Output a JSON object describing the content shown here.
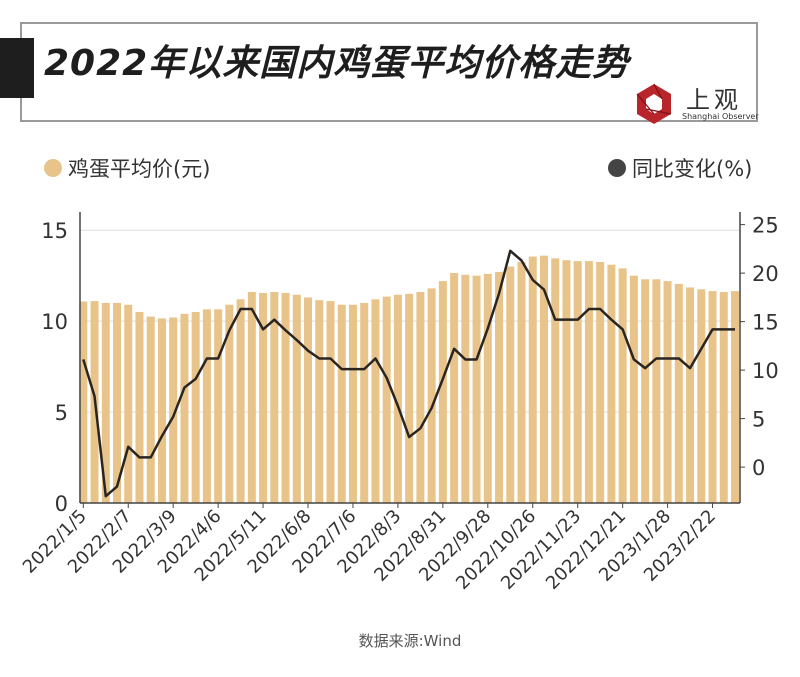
{
  "title": "2022年以来国内鸡蛋平均价格走势",
  "logo": {
    "cn": "上观",
    "en": "Shanghai Observer",
    "color": "#b8252b"
  },
  "source": "数据来源:Wind",
  "chart_data": {
    "type": "bar+line",
    "legend": {
      "placement": "top"
    },
    "grid": true,
    "x_tick_labels": [
      "2022/1/5",
      "2022/2/7",
      "2022/3/9",
      "2022/4/6",
      "2022/5/11",
      "2022/6/8",
      "2022/7/6",
      "2022/8/3",
      "2022/8/31",
      "2022/9/28",
      "2022/10/26",
      "2022/11/23",
      "2022/12/21",
      "2023/1/28",
      "2023/2/22"
    ],
    "left_axis": {
      "ylim": [
        0,
        16
      ],
      "ticks": [
        0,
        5,
        10,
        15
      ]
    },
    "right_axis": {
      "ylim": [
        -3.7,
        26.3
      ],
      "ticks": [
        0,
        5,
        10,
        15,
        20,
        25
      ]
    },
    "series": [
      {
        "name": "鸡蛋平均价(元)",
        "type": "bar",
        "axis": "left",
        "color": "#e8c48a",
        "values": [
          11.08,
          11.1,
          11.0,
          11.0,
          10.9,
          10.5,
          10.25,
          10.15,
          10.2,
          10.4,
          10.5,
          10.65,
          10.65,
          10.9,
          11.2,
          11.6,
          11.55,
          11.6,
          11.55,
          11.45,
          11.3,
          11.15,
          11.1,
          10.9,
          10.9,
          11.0,
          11.2,
          11.35,
          11.45,
          11.5,
          11.6,
          11.8,
          12.2,
          12.65,
          12.55,
          12.5,
          12.6,
          12.7,
          13.0,
          13.25,
          13.55,
          13.6,
          13.45,
          13.35,
          13.3,
          13.3,
          13.25,
          13.1,
          12.9,
          12.5,
          12.3,
          12.3,
          12.2,
          12.05,
          11.85,
          11.75,
          11.65,
          11.6,
          11.65
        ]
      },
      {
        "name": "同比变化(%)",
        "type": "line",
        "axis": "right",
        "color": "#2a2520",
        "values": [
          11.1,
          7.3,
          -3.0,
          -2.0,
          2.1,
          1.0,
          1.0,
          3.2,
          5.2,
          8.2,
          9.1,
          11.2,
          11.2,
          14.1,
          16.3,
          16.3,
          14.2,
          15.2,
          14.1,
          13.1,
          12.0,
          11.2,
          11.2,
          10.1,
          10.1,
          10.1,
          11.2,
          9.2,
          6.3,
          3.1,
          4.0,
          6.1,
          9.1,
          12.2,
          11.1,
          11.1,
          14.3,
          17.9,
          22.3,
          21.3,
          19.3,
          18.3,
          15.2,
          15.2,
          15.2,
          16.3,
          16.3,
          15.2,
          14.2,
          11.1,
          10.2,
          11.2,
          11.2,
          11.2,
          10.2,
          12.2,
          14.2,
          14.2,
          14.2
        ]
      }
    ]
  }
}
